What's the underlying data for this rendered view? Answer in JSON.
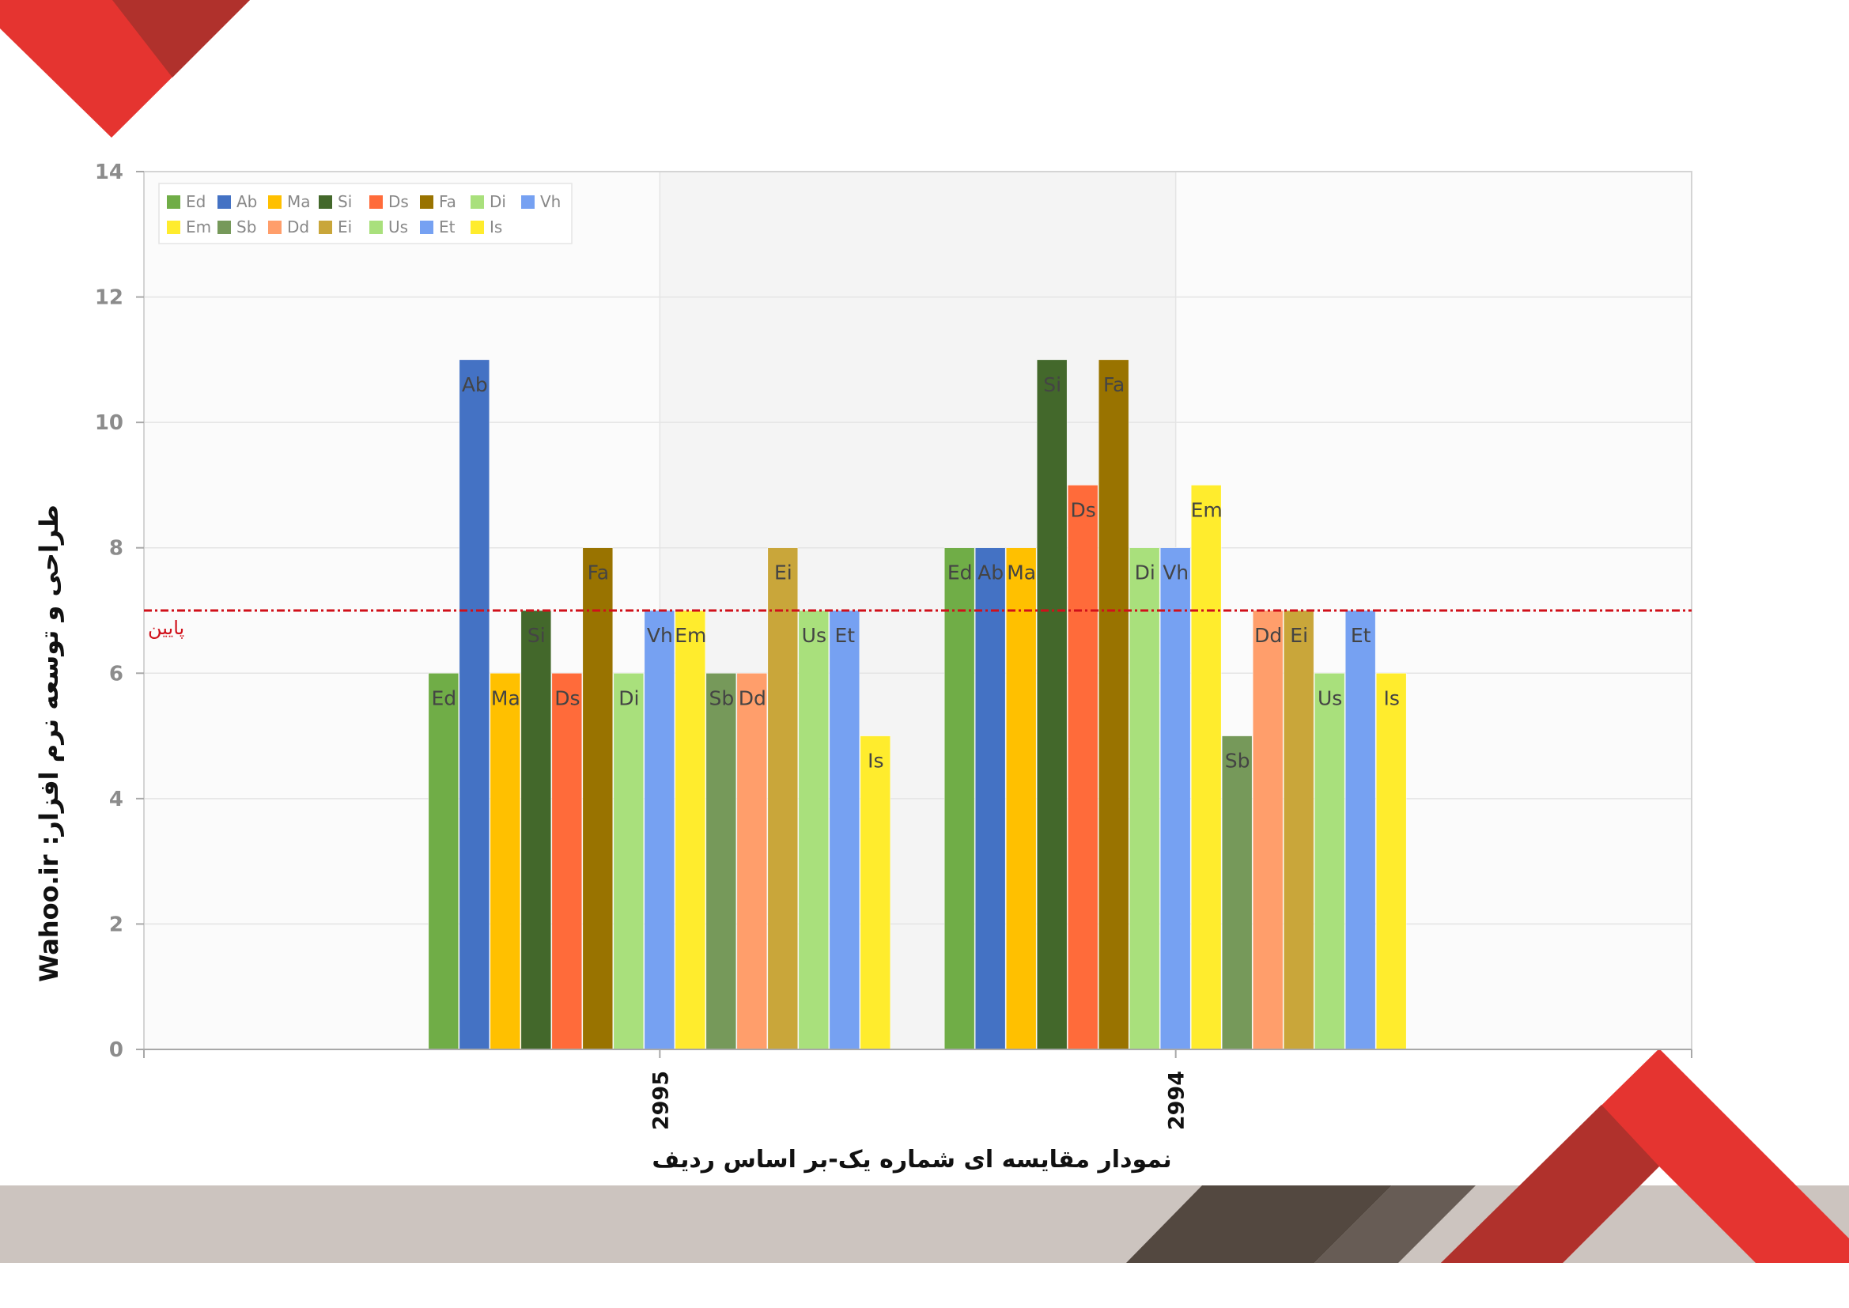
{
  "colors": {
    "deco_red": "#e53430",
    "deco_dark_red": "#b0312c",
    "deco_band": "#ccc4bf",
    "deco_brown": "#534840",
    "deco_brown_light": "#675c55",
    "threshold": "#d0101a",
    "axis_text": "#8c8c8c",
    "bar_label": "#444444"
  },
  "chart_data": {
    "type": "bar",
    "title": "",
    "xlabel": "نمودار مقایسه ای شماره یک-بر اساس ردیف",
    "ylabel": "Wahoo.ir :طراحی و توسعه نرم افزار",
    "ylim": [
      0,
      14
    ],
    "yticks": [
      0,
      2,
      4,
      6,
      8,
      10,
      12,
      14
    ],
    "grid": true,
    "legend_position": "top-left",
    "categories": [
      "2995",
      "2994"
    ],
    "series": [
      {
        "name": "Ed",
        "color": "#70ad47",
        "values": [
          6,
          8
        ]
      },
      {
        "name": "Ab",
        "color": "#4472c4",
        "values": [
          11,
          8
        ]
      },
      {
        "name": "Ma",
        "color": "#ffc000",
        "values": [
          6,
          8
        ]
      },
      {
        "name": "Si",
        "color": "#43682b",
        "values": [
          7,
          11
        ]
      },
      {
        "name": "Ds",
        "color": "#ff6b3a",
        "values": [
          6,
          9
        ]
      },
      {
        "name": "Fa",
        "color": "#997300",
        "values": [
          8,
          11
        ]
      },
      {
        "name": "Di",
        "color": "#a9e07c",
        "values": [
          6,
          8
        ]
      },
      {
        "name": "Vh",
        "color": "#76a1f2",
        "values": [
          7,
          8
        ]
      },
      {
        "name": "Em",
        "color": "#ffec2d",
        "values": [
          7,
          9
        ]
      },
      {
        "name": "Sb",
        "color": "#76995a",
        "values": [
          6,
          5
        ]
      },
      {
        "name": "Dd",
        "color": "#ff9e6b",
        "values": [
          6,
          7
        ]
      },
      {
        "name": "Ei",
        "color": "#c9a63a",
        "values": [
          8,
          7
        ]
      },
      {
        "name": "Us",
        "color": "#a9e07c",
        "values": [
          7,
          6
        ]
      },
      {
        "name": "Et",
        "color": "#76a1f2",
        "values": [
          7,
          7
        ]
      },
      {
        "name": "Is",
        "color": "#ffec2d",
        "values": [
          5,
          6
        ]
      }
    ],
    "threshold": {
      "value": 7,
      "label": "پایین"
    }
  }
}
